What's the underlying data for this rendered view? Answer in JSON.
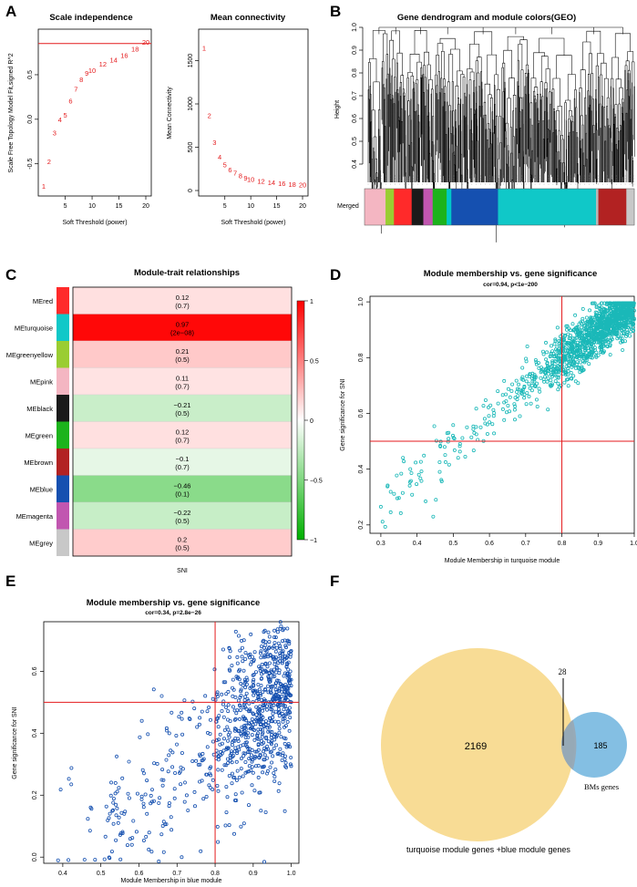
{
  "panel_letters": [
    "A",
    "B",
    "C",
    "D",
    "E",
    "F"
  ],
  "chart_data": [
    {
      "id": "A1",
      "type": "scatter",
      "title": "Scale independence",
      "xlabel": "Soft Threshold (power)",
      "ylabel": "Scale Free Topology Model Fit,signed R^2",
      "xlim": [
        1,
        20
      ],
      "ylim": [
        -0.8,
        0.95
      ],
      "xticks": [
        5,
        10,
        15,
        20
      ],
      "yticks": [
        -0.5,
        0.0,
        0.5
      ],
      "hline": 0.85,
      "x": [
        1,
        2,
        3,
        4,
        5,
        6,
        7,
        8,
        9,
        10,
        12,
        14,
        16,
        18,
        20
      ],
      "y": [
        -0.75,
        -0.47,
        -0.15,
        0.0,
        0.05,
        0.21,
        0.34,
        0.45,
        0.52,
        0.55,
        0.62,
        0.67,
        0.72,
        0.79,
        0.87
      ],
      "labels": [
        "1",
        "2",
        "3",
        "4",
        "5",
        "6",
        "7",
        "8",
        "9",
        "10",
        "12",
        "14",
        "16",
        "18",
        "20"
      ],
      "color": "#e41a1c"
    },
    {
      "id": "A2",
      "type": "scatter",
      "title": "Mean connectivity",
      "xlabel": "Soft Threshold (power)",
      "ylabel": "Mean Connectivity",
      "xlim": [
        1,
        20
      ],
      "ylim": [
        0,
        1800
      ],
      "xticks": [
        5,
        10,
        15,
        20
      ],
      "yticks": [
        0,
        500,
        1000,
        1500
      ],
      "x": [
        1,
        2,
        3,
        4,
        5,
        6,
        7,
        8,
        9,
        10,
        12,
        14,
        16,
        18,
        20
      ],
      "y": [
        1650,
        870,
        560,
        390,
        300,
        240,
        205,
        175,
        150,
        130,
        110,
        95,
        85,
        75,
        70
      ],
      "labels": [
        "1",
        "2",
        "3",
        "4",
        "5",
        "6",
        "7",
        "8",
        "9",
        "10",
        "12",
        "14",
        "16",
        "18",
        "20"
      ],
      "color": "#e41a1c"
    },
    {
      "id": "B",
      "type": "dendrogram",
      "title": "Gene dendrogram and module colors(GEO)",
      "ylabel": "Height",
      "ylim": [
        0.3,
        1.0
      ],
      "yticks": [
        0.4,
        0.5,
        0.6,
        0.7,
        0.8,
        0.9,
        1.0
      ],
      "color_bar_label": "Merged",
      "modules": [
        {
          "color": "#f4b6c2",
          "width": 0.045
        },
        {
          "color": "#9acd32",
          "width": 0.018
        },
        {
          "color": "#ff2a2a",
          "width": 0.038
        },
        {
          "color": "#1a1a1a",
          "width": 0.025
        },
        {
          "color": "#c156b0",
          "width": 0.02
        },
        {
          "color": "#1cb31c",
          "width": 0.03
        },
        {
          "color": "#00c8c8",
          "width": 0.01
        },
        {
          "color": "#1550b0",
          "width": 0.1
        },
        {
          "color": "#10c8c8",
          "width": 0.21
        },
        {
          "color": "#b8b8b8",
          "width": 0.005
        },
        {
          "color": "#b22222",
          "width": 0.06
        },
        {
          "color": "#c8c8c8",
          "width": 0.017
        }
      ]
    },
    {
      "id": "C",
      "type": "heatmap",
      "title": "Module-trait relationships",
      "xlabel": "SNI",
      "legend_ticks": [
        1,
        0.5,
        0,
        -0.5,
        -1
      ],
      "legend_tick_labels": [
        "1",
        "0.5",
        "0",
        "−0.5",
        "−1"
      ],
      "rows": [
        {
          "name": "MEred",
          "color": "#ff2a2a",
          "value": 0.12,
          "corr": "0.12",
          "p": "(0.7)"
        },
        {
          "name": "MEturquoise",
          "color": "#10c8c8",
          "value": 0.97,
          "corr": "0.97",
          "p": "(2e−08)"
        },
        {
          "name": "MEgreenyellow",
          "color": "#9acd32",
          "value": 0.21,
          "corr": "0.21",
          "p": "(0.5)"
        },
        {
          "name": "MEpink",
          "color": "#f4b6c2",
          "value": 0.11,
          "corr": "0.11",
          "p": "(0.7)"
        },
        {
          "name": "MEblack",
          "color": "#1a1a1a",
          "value": -0.21,
          "corr": "−0.21",
          "p": "(0.5)"
        },
        {
          "name": "MEgreen",
          "color": "#1cb31c",
          "value": 0.12,
          "corr": "0.12",
          "p": "(0.7)"
        },
        {
          "name": "MEbrown",
          "color": "#b22222",
          "value": -0.1,
          "corr": "−0.1",
          "p": "(0.7)"
        },
        {
          "name": "MEblue",
          "color": "#1550b0",
          "value": -0.46,
          "corr": "−0.46",
          "p": "(0.1)"
        },
        {
          "name": "MEmagenta",
          "color": "#c156b0",
          "value": -0.22,
          "corr": "−0.22",
          "p": "(0.5)"
        },
        {
          "name": "MEgrey",
          "color": "#c8c8c8",
          "value": 0.2,
          "corr": "0.2",
          "p": "(0.5)"
        }
      ]
    },
    {
      "id": "D",
      "type": "scatter",
      "title": "Module membership vs. gene significance",
      "subtitle": "cor=0.94, p<1e−200",
      "xlabel": "Module Membership in turquoise module",
      "ylabel": "Gene significance for SNI",
      "xlim": [
        0.27,
        1.0
      ],
      "ylim": [
        0.17,
        1.02
      ],
      "xticks": [
        0.3,
        0.4,
        0.5,
        0.6,
        0.7,
        0.8,
        0.9,
        1.0
      ],
      "xtick_labels": [
        "0.3",
        "0.4",
        "0.5",
        "0.6",
        "0.7",
        "0.8",
        "0.9",
        "1.0"
      ],
      "yticks": [
        0.2,
        0.4,
        0.6,
        0.8,
        1.0
      ],
      "ytick_labels": [
        "0.2",
        "0.4",
        "0.6",
        "0.8",
        "1.0"
      ],
      "vline": 0.8,
      "hline": 0.5,
      "point_color": "#1ab8b8",
      "n_points": 1500
    },
    {
      "id": "E",
      "type": "scatter",
      "title": "Module membership vs. gene significance",
      "subtitle": "cor=0.34, p=2.8e−26",
      "xlabel": "Module Membership in blue module",
      "ylabel": "Gene significance for SNI",
      "xlim": [
        0.35,
        1.02
      ],
      "ylim": [
        -0.02,
        0.76
      ],
      "xticks": [
        0.4,
        0.5,
        0.6,
        0.7,
        0.8,
        0.9,
        1.0
      ],
      "xtick_labels": [
        "0.4",
        "0.5",
        "0.6",
        "0.7",
        "0.8",
        "0.9",
        "1.0"
      ],
      "yticks": [
        0.0,
        0.2,
        0.4,
        0.6
      ],
      "ytick_labels": [
        "0.0",
        "0.2",
        "0.4",
        "0.6"
      ],
      "vline": 0.8,
      "hline": 0.5,
      "point_color": "#1550b0",
      "n_points": 900
    },
    {
      "id": "F",
      "type": "venn",
      "sets": [
        {
          "label": "turquoise module genes +blue module genes",
          "only": "2169",
          "color": "#f7d88a"
        },
        {
          "label": "BMs genes",
          "only": "185",
          "color": "#6fb4de"
        }
      ],
      "intersection": "28"
    }
  ]
}
